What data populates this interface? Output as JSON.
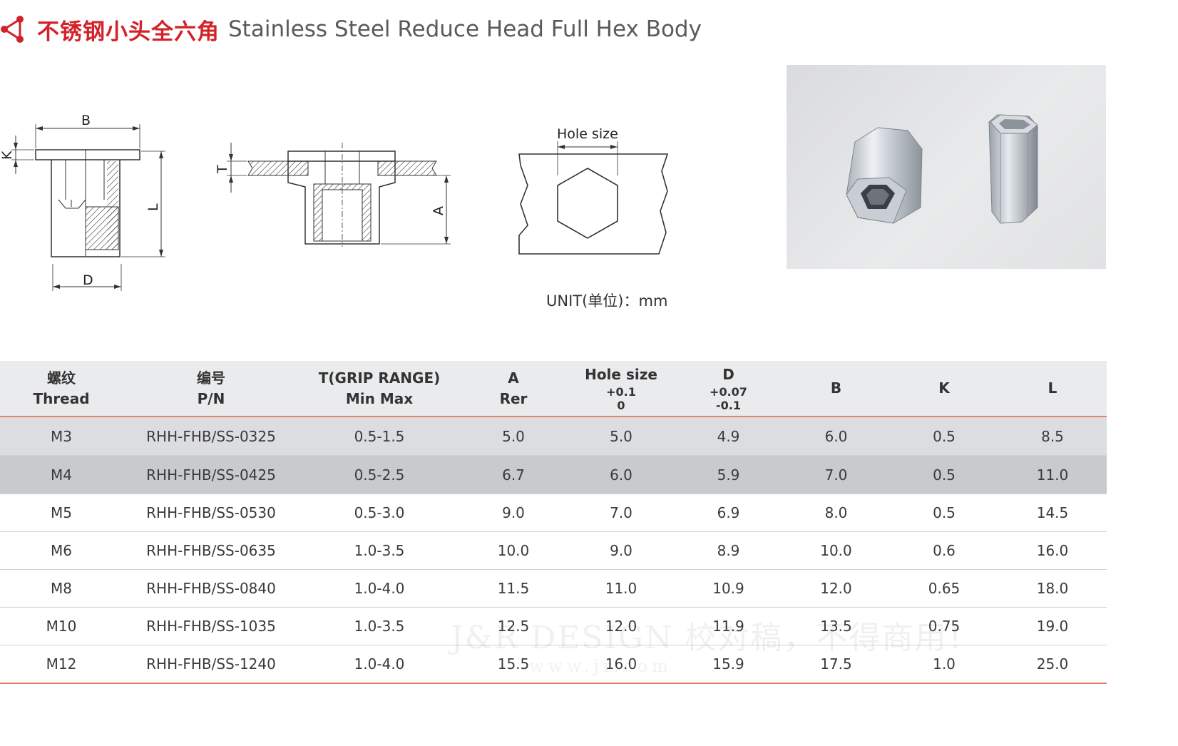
{
  "title": {
    "cn": "不锈钢小头全六角",
    "en": "Stainless Steel Reduce Head Full Hex Body",
    "accent": "#d3232a"
  },
  "drawing_labels": {
    "b": "B",
    "k": "K",
    "l": "L",
    "d": "D",
    "t": "T",
    "a": "A",
    "hole_size": "Hole size"
  },
  "unit_label": "UNIT(单位)：mm",
  "table": {
    "headers": [
      {
        "line1": "螺纹",
        "line2": "Thread"
      },
      {
        "line1": "编号",
        "line2": "P/N"
      },
      {
        "line1": "T(GRIP RANGE)",
        "line2": "Min Max"
      },
      {
        "line1": "A",
        "line2": "Rer"
      },
      {
        "line1": "Hole size",
        "tol1": "+0.1",
        "tol2": "0"
      },
      {
        "line1": "D",
        "tol1": "+0.07",
        "tol2": "-0.1"
      },
      {
        "line1": "B"
      },
      {
        "line1": "K"
      },
      {
        "line1": "L"
      }
    ],
    "rows": [
      [
        "M3",
        "RHH-FHB/SS-0325",
        "0.5-1.5",
        "5.0",
        "5.0",
        "4.9",
        "6.0",
        "0.5",
        "8.5"
      ],
      [
        "M4",
        "RHH-FHB/SS-0425",
        "0.5-2.5",
        "6.7",
        "6.0",
        "5.9",
        "7.0",
        "0.5",
        "11.0"
      ],
      [
        "M5",
        "RHH-FHB/SS-0530",
        "0.5-3.0",
        "9.0",
        "7.0",
        "6.9",
        "8.0",
        "0.5",
        "14.5"
      ],
      [
        "M6",
        "RHH-FHB/SS-0635",
        "1.0-3.5",
        "10.0",
        "9.0",
        "8.9",
        "10.0",
        "0.6",
        "16.0"
      ],
      [
        "M8",
        "RHH-FHB/SS-0840",
        "1.0-4.0",
        "11.5",
        "11.0",
        "10.9",
        "12.0",
        "0.65",
        "18.0"
      ],
      [
        "M10",
        "RHH-FHB/SS-1035",
        "1.0-3.5",
        "12.5",
        "12.0",
        "11.9",
        "13.5",
        "0.75",
        "19.0"
      ],
      [
        "M12",
        "RHH-FHB/SS-1240",
        "1.0-4.0",
        "15.5",
        "16.0",
        "15.9",
        "17.5",
        "1.0",
        "25.0"
      ]
    ]
  },
  "watermark": {
    "line1": "J&R DESIGN 校对稿，不得商用！",
    "line2": "www.jr.com"
  }
}
